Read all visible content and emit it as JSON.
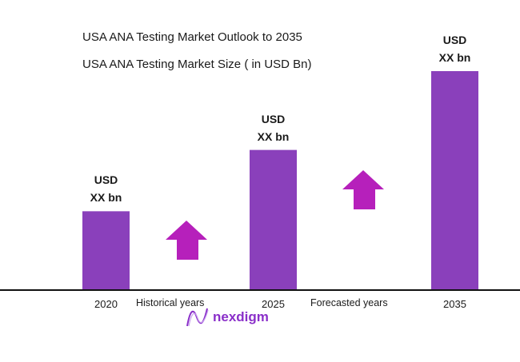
{
  "chart_data": {
    "type": "bar",
    "title": "USA ANA Testing Market Outlook to 2035",
    "subtitle": "USA ANA Testing Market Size ( in USD Bn)",
    "categories": [
      "2020",
      "2025",
      "2035"
    ],
    "relative_values": [
      0.36,
      0.64,
      1.0
    ],
    "data_labels": [
      {
        "line1": "USD",
        "line2": "XX bn"
      },
      {
        "line1": "USD",
        "line2": "XX bn"
      },
      {
        "line1": "USD",
        "line2": "XX bn"
      }
    ],
    "annotations": [
      "Historical years",
      "Forecasted years"
    ],
    "grid": false,
    "colors": {
      "bar": "#8a40bb",
      "arrow": "#b620bb",
      "axis": "#111111"
    }
  },
  "logo": {
    "text": "nexdigm"
  }
}
